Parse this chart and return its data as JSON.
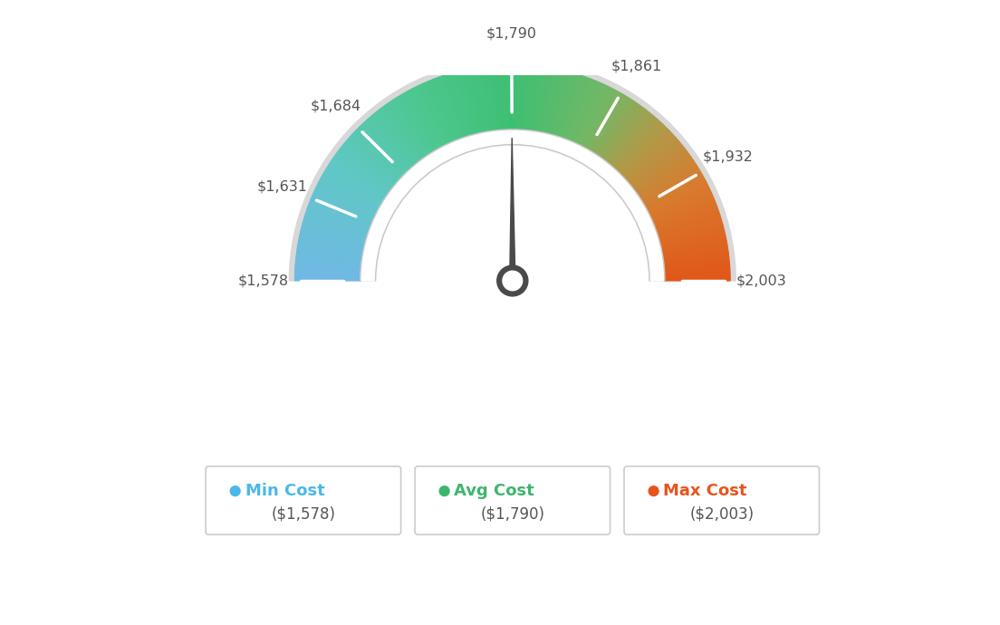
{
  "min_val": 1578,
  "avg_val": 1790,
  "max_val": 2003,
  "tick_labels": [
    "$1,578",
    "$1,631",
    "$1,684",
    "$1,790",
    "$1,861",
    "$1,932",
    "$2,003"
  ],
  "tick_values": [
    1578,
    1631,
    1684,
    1790,
    1861,
    1932,
    2003
  ],
  "legend_items": [
    {
      "label": "Min Cost",
      "sublabel": "($1,578)",
      "color": "#4ab8e8"
    },
    {
      "label": "Avg Cost",
      "sublabel": "($1,790)",
      "color": "#3db56e"
    },
    {
      "label": "Max Cost",
      "sublabel": "($2,003)",
      "color": "#e8541e"
    }
  ],
  "color_stops": [
    [
      0.0,
      [
        0.44,
        0.72,
        0.9
      ]
    ],
    [
      0.18,
      [
        0.38,
        0.78,
        0.78
      ]
    ],
    [
      0.35,
      [
        0.3,
        0.78,
        0.56
      ]
    ],
    [
      0.5,
      [
        0.24,
        0.75,
        0.45
      ]
    ],
    [
      0.65,
      [
        0.45,
        0.72,
        0.4
      ]
    ],
    [
      0.75,
      [
        0.7,
        0.6,
        0.28
      ]
    ],
    [
      0.85,
      [
        0.85,
        0.48,
        0.18
      ]
    ],
    [
      1.0,
      [
        0.88,
        0.34,
        0.1
      ]
    ]
  ],
  "background_color": "#ffffff",
  "needle_color": "#4a4a4a",
  "outer_ring_color": "#d8d8d8",
  "inner_ring_color": "#e8e8e8"
}
